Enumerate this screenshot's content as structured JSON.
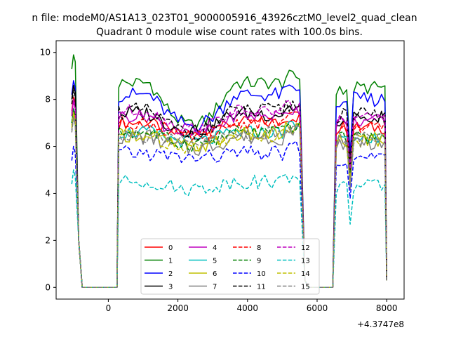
{
  "chart_data": {
    "type": "line",
    "suptitle": "n file: modeM0/AS1A13_023T01_9000005916_43926cztM0_level2_quad_clean",
    "title": "Quadrant 0 module wise count rates with 100.0s bins.",
    "xlabel": "",
    "ylabel": "",
    "x_offset_label": "+4.3747e8",
    "xlim": [
      -1500,
      8500
    ],
    "ylim": [
      -0.5,
      10.5
    ],
    "x_ticks": [
      0,
      2000,
      4000,
      6000,
      8000
    ],
    "x_tick_labels": [
      "0",
      "2000",
      "4000",
      "6000",
      "8000"
    ],
    "y_ticks": [
      0,
      2,
      4,
      6,
      8,
      10
    ],
    "y_tick_labels": [
      "0",
      "2",
      "4",
      "6",
      "8",
      "10"
    ],
    "grid": false,
    "legend_position": "lower-center",
    "legend_columns": 4,
    "segments": [
      {
        "x_start": -1050,
        "x_end": -750
      },
      {
        "x_start": -750,
        "x_end": 250,
        "zero": true
      },
      {
        "x_start": 250,
        "x_end": 5650
      },
      {
        "x_start": 5650,
        "x_end": 6450,
        "zero": true
      },
      {
        "x_start": 6450,
        "x_end": 8050
      }
    ],
    "series": [
      {
        "name": "0",
        "color": "#ff0000",
        "dash": "solid",
        "level": 7.0,
        "dip": 6.5,
        "pre": 8.1
      },
      {
        "name": "1",
        "color": "#008000",
        "dash": "solid",
        "level": 8.7,
        "dip": 6.9,
        "pre": 9.9
      },
      {
        "name": "2",
        "color": "#0000ff",
        "dash": "solid",
        "level": 8.2,
        "dip": 6.9,
        "pre": 8.8
      },
      {
        "name": "3",
        "color": "#000000",
        "dash": "solid",
        "level": 7.4,
        "dip": 6.7,
        "pre": 8.6
      },
      {
        "name": "4",
        "color": "#bf00bf",
        "dash": "solid",
        "level": 7.3,
        "dip": 6.5,
        "pre": 8.0
      },
      {
        "name": "5",
        "color": "#00bfbf",
        "dash": "solid",
        "level": 6.6,
        "dip": 6.2,
        "pre": 7.6
      },
      {
        "name": "6",
        "color": "#bfbf00",
        "dash": "solid",
        "level": 6.5,
        "dip": 6.0,
        "pre": 7.5
      },
      {
        "name": "7",
        "color": "#808080",
        "dash": "solid",
        "level": 6.4,
        "dip": 5.9,
        "pre": 7.3
      },
      {
        "name": "8",
        "color": "#ff0000",
        "dash": "dashed",
        "level": 7.0,
        "dip": 6.4,
        "pre": 7.9
      },
      {
        "name": "9",
        "color": "#008000",
        "dash": "dashed",
        "level": 6.6,
        "dip": 6.1,
        "pre": 7.6
      },
      {
        "name": "10",
        "color": "#0000ff",
        "dash": "dashed",
        "level": 5.7,
        "dip": 5.5,
        "pre": 6.0
      },
      {
        "name": "11",
        "color": "#000000",
        "dash": "dashed",
        "level": 7.5,
        "dip": 6.6,
        "pre": 8.4
      },
      {
        "name": "12",
        "color": "#bf00bf",
        "dash": "dashed",
        "level": 7.5,
        "dip": 6.8,
        "pre": 7.9
      },
      {
        "name": "13",
        "color": "#00bfbf",
        "dash": "dashed",
        "level": 4.5,
        "dip": 4.2,
        "pre": 5.0
      },
      {
        "name": "14",
        "color": "#bfbf00",
        "dash": "dashed",
        "level": 6.5,
        "dip": 6.0,
        "pre": 7.4
      },
      {
        "name": "15",
        "color": "#808080",
        "dash": "dashed",
        "level": 6.5,
        "dip": 6.1,
        "pre": 7.2
      }
    ]
  }
}
